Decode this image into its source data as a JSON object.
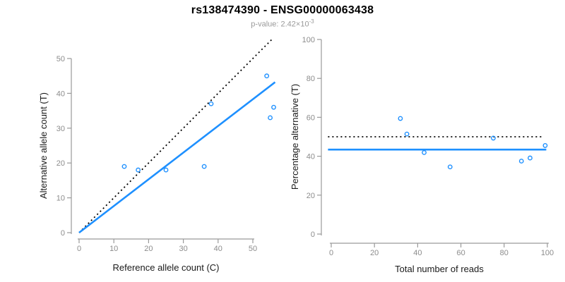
{
  "header": {
    "title": "rs138474390 - ENSG00000063438",
    "subtitle_prefix": "p-value: 2.42×10",
    "subtitle_exponent": "-3"
  },
  "colors": {
    "accent_blue": "#1E90FF",
    "dotted_line_black": "#000000",
    "axis_line_gray": "#9a9a9a",
    "tick_label_gray": "#8c8c8c",
    "axis_label_black": "#1a1a1a",
    "subtitle_gray": "#9a9a9a",
    "background": "#ffffff"
  },
  "chart_data": [
    {
      "type": "scatter",
      "panel": "left",
      "title": "",
      "xlabel": "Reference allele count (C)",
      "ylabel": "Alternative allele count (T)",
      "xticks": [
        0,
        10,
        20,
        30,
        40,
        50
      ],
      "yticks": [
        0,
        10,
        20,
        30,
        40,
        50
      ],
      "xlim": [
        0,
        56
      ],
      "ylim": [
        0,
        55.5
      ],
      "grid": false,
      "legend": "none",
      "points": [
        [
          13,
          19
        ],
        [
          17,
          18
        ],
        [
          25,
          18
        ],
        [
          36,
          19
        ],
        [
          38,
          37
        ],
        [
          54,
          45
        ],
        [
          55,
          33
        ],
        [
          56,
          36
        ]
      ],
      "lines": [
        {
          "name": "identity-line",
          "style": "dotted",
          "color": "black",
          "x1": 0,
          "y1": 0,
          "x2": 55.5,
          "y2": 55.5
        },
        {
          "name": "fit-line",
          "style": "solid",
          "color": "blue",
          "x1": 0,
          "y1": 0,
          "x2": 56.4,
          "y2": 43.2
        }
      ]
    },
    {
      "type": "scatter",
      "panel": "right",
      "title": "",
      "xlabel": "Total number of reads",
      "ylabel": "Percentage alternative (T)",
      "xticks": [
        0,
        20,
        40,
        60,
        80,
        100
      ],
      "yticks": [
        0,
        20,
        40,
        60,
        80,
        100
      ],
      "xlim": [
        0,
        100
      ],
      "ylim": [
        0,
        100
      ],
      "grid": false,
      "legend": "none",
      "points": [
        [
          32,
          59.4
        ],
        [
          35,
          51.4
        ],
        [
          43,
          41.9
        ],
        [
          55,
          34.5
        ],
        [
          75,
          49.3
        ],
        [
          88,
          37.5
        ],
        [
          92,
          39.1
        ],
        [
          99,
          45.5
        ]
      ],
      "lines": [
        {
          "name": "expected-50pct-line",
          "style": "dotted",
          "color": "black",
          "x1": -1.5,
          "y1": 50,
          "x2": 98.5,
          "y2": 50
        },
        {
          "name": "observed-pct-line",
          "style": "solid",
          "color": "blue",
          "x1": -1.5,
          "y1": 43.4,
          "x2": 99.5,
          "y2": 43.4
        }
      ]
    }
  ]
}
